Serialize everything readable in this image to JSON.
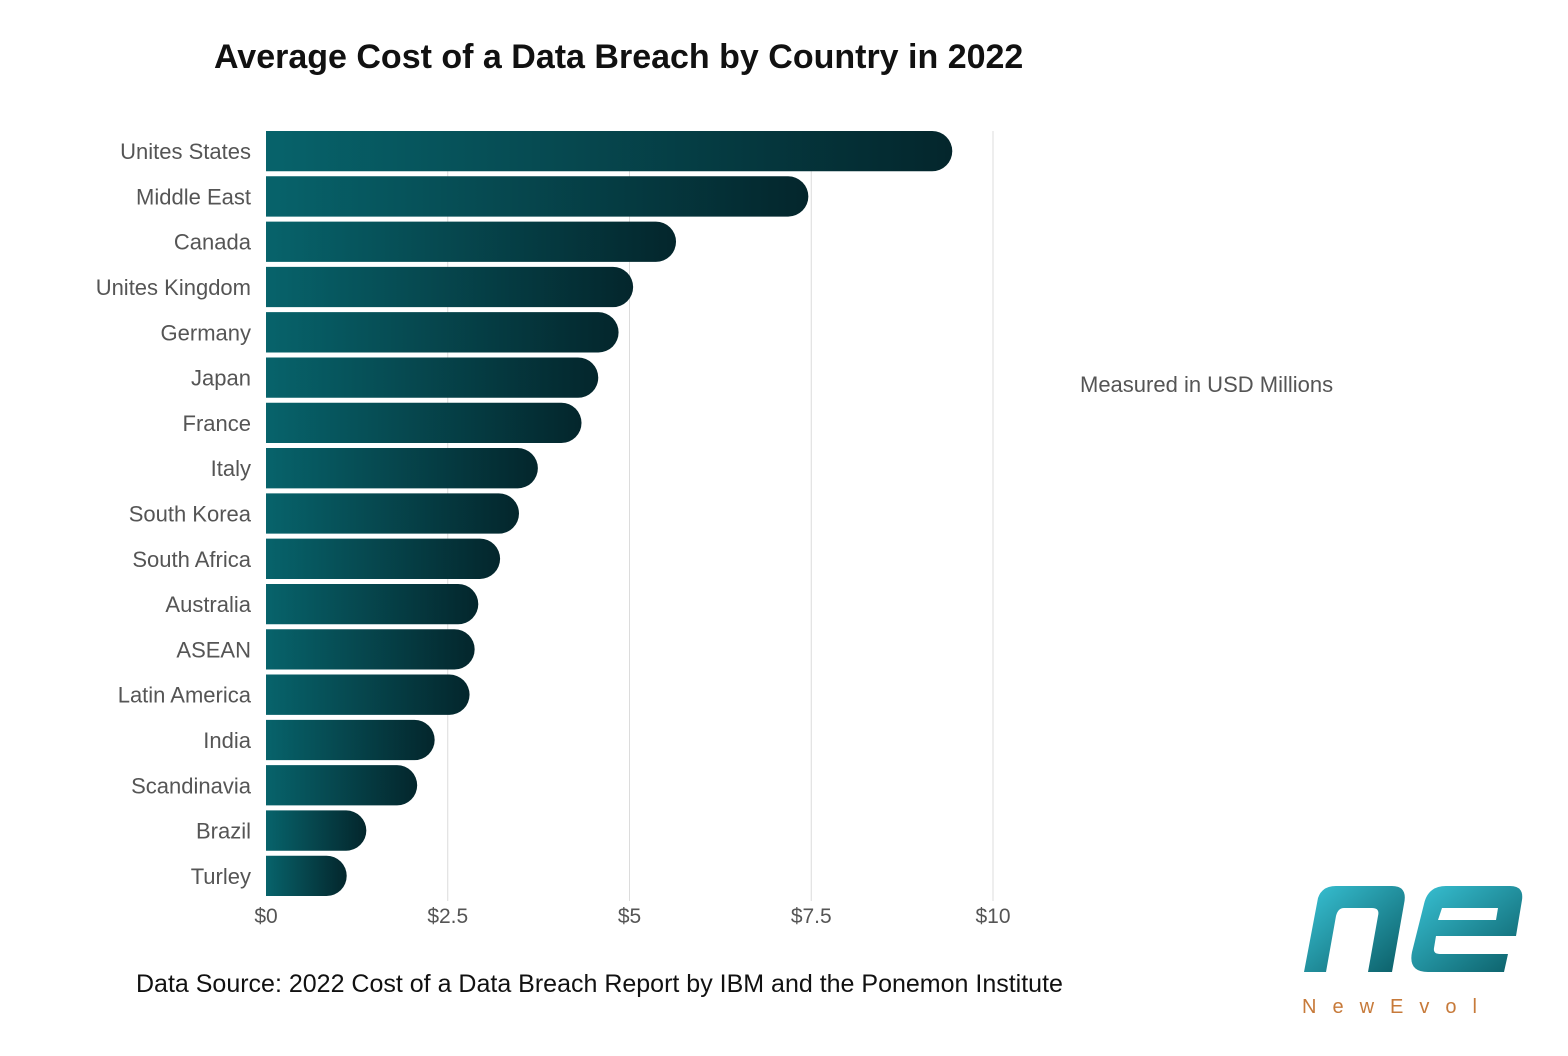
{
  "chart_data": {
    "type": "bar",
    "orientation": "horizontal",
    "title": "Average Cost of a Data Breach by Country in 2022",
    "categories": [
      "Unites States",
      "Middle East",
      "Canada",
      "Unites Kingdom",
      "Germany",
      "Japan",
      "France",
      "Italy",
      "South Korea",
      "South Africa",
      "Australia",
      "ASEAN",
      "Latin America",
      "India",
      "Scandinavia",
      "Brazil",
      "Turley"
    ],
    "values": [
      9.44,
      7.46,
      5.64,
      5.05,
      4.85,
      4.57,
      4.34,
      3.74,
      3.48,
      3.22,
      2.92,
      2.87,
      2.8,
      2.32,
      2.08,
      1.38,
      1.11
    ],
    "xlim": [
      0,
      10
    ],
    "xticks": [
      0,
      2.5,
      5,
      7.5,
      10
    ],
    "xtick_labels": [
      "$0",
      "$2.5",
      "$5",
      "$7.5",
      "$10"
    ],
    "grid": "vertical",
    "annotation": "Measured in USD Millions",
    "bar_colors": {
      "start": "#07636b",
      "end": "#04262c"
    }
  },
  "source_text": "Data Source: 2022 Cost of a Data Breach Report by IBM and the Ponemon Institute",
  "logo": {
    "brand": "NewEvol",
    "mark": "ne",
    "colors": [
      "#0b7d85",
      "#39c3d6",
      "#c77a3a"
    ]
  }
}
